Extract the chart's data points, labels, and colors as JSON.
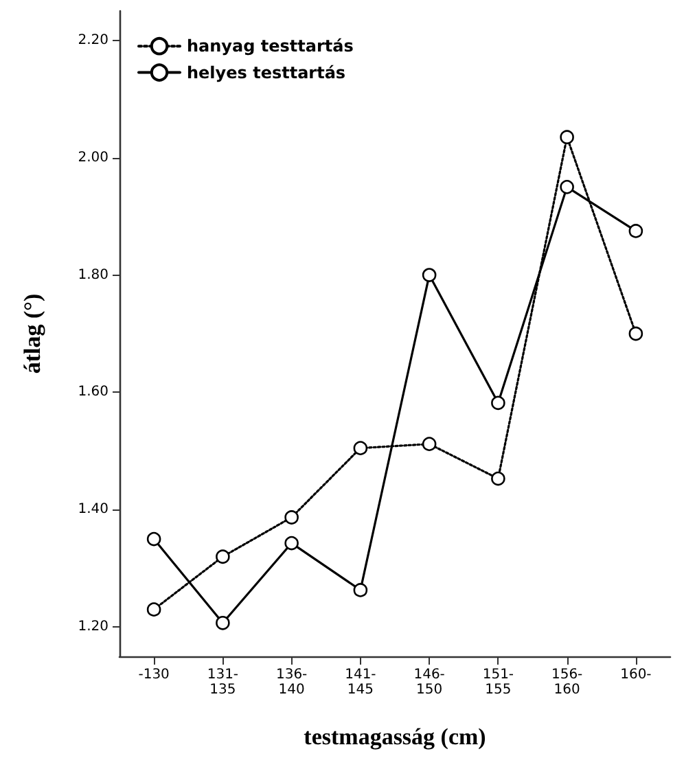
{
  "chart_data": {
    "type": "line",
    "xlabel": "testmagasság (cm)",
    "ylabel": "átlag (°)",
    "categories": [
      "-130",
      "131-\n135",
      "136-\n140",
      "141-\n145",
      "146-\n150",
      "151-\n155",
      "156-\n160",
      "160-"
    ],
    "series": [
      {
        "name": "hanyag testtartás",
        "color": "#000000",
        "line_style": "dotted",
        "values": [
          1.23,
          1.32,
          1.387,
          1.505,
          1.512,
          1.453,
          2.035,
          1.7
        ]
      },
      {
        "name": "helyes testtartás",
        "color": "#000000",
        "line_style": "solid",
        "values": [
          1.35,
          1.207,
          1.343,
          1.263,
          1.8,
          1.582,
          1.95,
          1.875
        ]
      }
    ],
    "ylim": [
      1.15,
      2.25
    ],
    "yticks": [
      {
        "value": 1.2,
        "label": "1.20"
      },
      {
        "value": 1.4,
        "label": "1.40"
      },
      {
        "value": 1.6,
        "label": "1.60"
      },
      {
        "value": 1.8,
        "label": "1.80"
      },
      {
        "value": 2.0,
        "label": "2.00"
      },
      {
        "value": 2.2,
        "label": "2.20"
      }
    ],
    "grid": false,
    "legend": "top left",
    "marker": "circle"
  }
}
